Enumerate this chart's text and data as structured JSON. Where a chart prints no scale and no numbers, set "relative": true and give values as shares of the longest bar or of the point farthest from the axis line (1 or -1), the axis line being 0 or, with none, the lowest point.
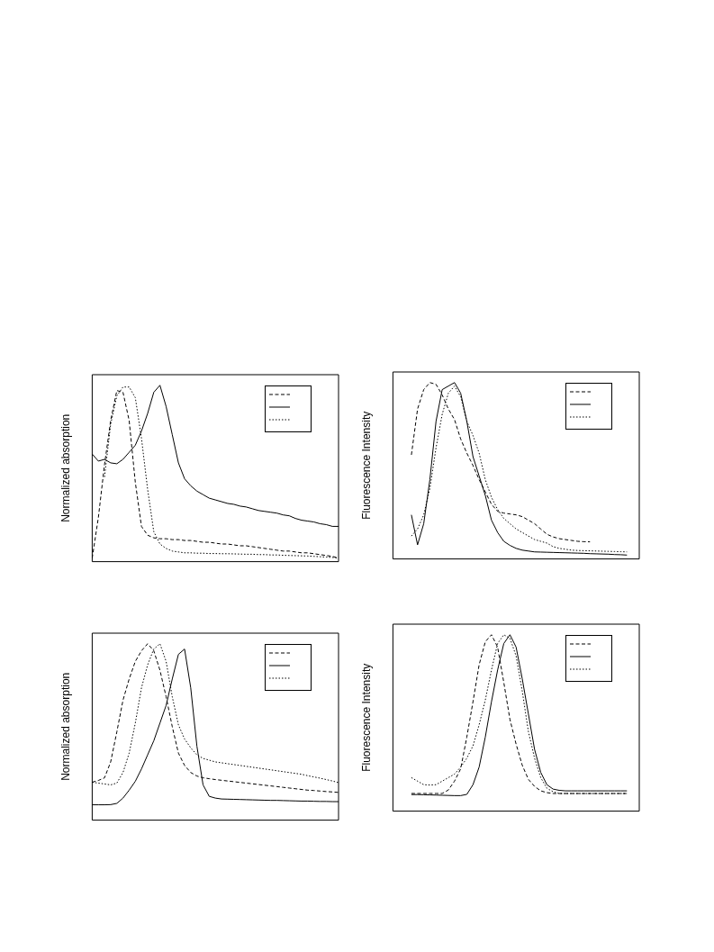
{
  "chart_data": [
    {
      "type": "line",
      "ylabel": "Normalized absorption",
      "relative": true,
      "categories": [
        null,
        null,
        null,
        null,
        null,
        null,
        null,
        null,
        null,
        null,
        null,
        null,
        null,
        null,
        null,
        null,
        null,
        null,
        null,
        null,
        null,
        null,
        null,
        null,
        null,
        null,
        null,
        null,
        null,
        null,
        null,
        null,
        null,
        null,
        null,
        null,
        null,
        null,
        null,
        null,
        null
      ],
      "series": [
        {
          "color": "#000000",
          "line_style": "dashed",
          "values": [
            0.02,
            0.25,
            0.55,
            0.8,
            0.97,
            0.96,
            0.8,
            0.45,
            0.2,
            0.15,
            0.135,
            0.13,
            0.13,
            0.125,
            0.125,
            0.12,
            0.12,
            0.115,
            0.11,
            0.11,
            0.105,
            0.1,
            0.1,
            0.095,
            0.09,
            0.09,
            0.085,
            0.08,
            0.075,
            0.07,
            0.065,
            0.06,
            0.06,
            0.055,
            0.05,
            0.05,
            0.045,
            0.04,
            0.035,
            0.03,
            0.02
          ]
        },
        {
          "color": "#000000",
          "line_style": "solid",
          "values": [
            0.61,
            0.57,
            0.58,
            0.56,
            0.555,
            0.58,
            0.62,
            0.66,
            0.74,
            0.84,
            0.96,
            1.0,
            0.88,
            0.72,
            0.56,
            0.47,
            0.43,
            0.4,
            0.38,
            0.36,
            0.35,
            0.34,
            0.33,
            0.325,
            0.315,
            0.31,
            0.3,
            0.29,
            0.285,
            0.28,
            0.275,
            0.265,
            0.26,
            0.245,
            0.235,
            0.23,
            0.225,
            0.215,
            0.21,
            0.2,
            0.2
          ]
        },
        {
          "color": "#000000",
          "line_style": "dotted",
          "values": [
            null,
            null,
            0.48,
            0.78,
            0.94,
            0.99,
            0.99,
            0.93,
            0.7,
            0.41,
            0.17,
            0.1,
            0.075,
            0.06,
            0.055,
            0.05,
            0.05,
            0.048,
            0.048,
            0.046,
            0.046,
            0.045,
            0.045,
            0.044,
            0.043,
            0.042,
            0.042,
            0.04,
            0.04,
            0.038,
            0.038,
            0.036,
            0.035,
            0.034,
            0.033,
            0.032,
            0.03,
            0.028,
            0.026,
            0.024,
            0.02
          ]
        }
      ]
    },
    {
      "type": "line",
      "ylabel": "Fluorescence Intensity",
      "relative": true,
      "categories": [
        null,
        null,
        null,
        null,
        null,
        null,
        null,
        null,
        null,
        null,
        null,
        null,
        null,
        null,
        null,
        null,
        null,
        null,
        null,
        null,
        null,
        null,
        null,
        null,
        null,
        null,
        null,
        null,
        null,
        null,
        null,
        null,
        null,
        null,
        null,
        null,
        null,
        null,
        null,
        null,
        null
      ],
      "series": [
        {
          "color": "#000000",
          "line_style": "dashed",
          "values": [
            null,
            null,
            null,
            0.59,
            0.85,
            0.96,
            1.0,
            0.99,
            0.93,
            0.85,
            0.79,
            0.68,
            0.6,
            0.53,
            0.45,
            0.38,
            0.31,
            0.27,
            0.26,
            0.255,
            0.25,
            0.24,
            0.22,
            0.2,
            0.17,
            0.14,
            0.125,
            0.115,
            0.11,
            0.105,
            0.1,
            0.098,
            0.097,
            null,
            null,
            null,
            null,
            null,
            null,
            null,
            null
          ]
        },
        {
          "color": "#000000",
          "line_style": "solid",
          "values": [
            null,
            null,
            null,
            0.25,
            0.08,
            0.2,
            0.45,
            0.78,
            0.96,
            0.98,
            1.0,
            0.94,
            0.78,
            0.58,
            0.47,
            0.36,
            0.22,
            0.15,
            0.1,
            0.077,
            0.06,
            0.05,
            0.045,
            0.04,
            0.039,
            0.038,
            0.037,
            0.036,
            0.035,
            0.034,
            0.033,
            0.032,
            0.03,
            0.029,
            0.028,
            0.027,
            0.025,
            0.024,
            0.022,
            null,
            null
          ]
        },
        {
          "color": "#000000",
          "line_style": "dotted",
          "values": [
            null,
            null,
            null,
            0.13,
            0.17,
            0.25,
            0.4,
            0.63,
            0.82,
            0.94,
            0.98,
            0.92,
            0.78,
            0.7,
            0.6,
            0.45,
            0.35,
            0.28,
            0.23,
            0.2,
            0.17,
            0.15,
            0.13,
            0.11,
            0.1,
            0.09,
            0.07,
            0.06,
            0.055,
            0.05,
            0.048,
            0.047,
            0.046,
            0.045,
            0.044,
            0.043,
            0.042,
            0.041,
            0.04,
            null,
            null
          ]
        }
      ]
    },
    {
      "type": "line",
      "ylabel": "Normalized absorption",
      "relative": true,
      "categories": [
        null,
        null,
        null,
        null,
        null,
        null,
        null,
        null,
        null,
        null,
        null,
        null,
        null,
        null,
        null,
        null,
        null,
        null,
        null,
        null,
        null,
        null,
        null,
        null,
        null,
        null,
        null,
        null,
        null,
        null,
        null,
        null,
        null,
        null,
        null,
        null,
        null,
        null,
        null,
        null,
        null
      ],
      "series": [
        {
          "color": "#000000",
          "line_style": "dashed",
          "values": [
            0.215,
            0.225,
            0.24,
            0.33,
            0.5,
            0.68,
            0.8,
            0.9,
            0.96,
            1.0,
            0.96,
            0.85,
            0.7,
            0.53,
            0.38,
            0.31,
            0.27,
            0.25,
            0.24,
            0.235,
            0.23,
            0.226,
            0.222,
            0.218,
            0.214,
            0.21,
            0.206,
            0.202,
            0.198,
            0.194,
            0.19,
            0.186,
            0.182,
            0.178,
            0.174,
            0.17,
            0.168,
            0.165,
            0.162,
            0.16,
            0.157
          ]
        },
        {
          "color": "#000000",
          "line_style": "solid",
          "values": [
            0.087,
            0.087,
            0.087,
            0.088,
            0.095,
            0.125,
            0.17,
            0.22,
            0.29,
            0.37,
            0.45,
            0.55,
            0.65,
            0.8,
            0.94,
            0.97,
            0.75,
            0.42,
            0.2,
            0.135,
            0.125,
            0.12,
            0.119,
            0.118,
            0.117,
            0.116,
            0.115,
            0.114,
            0.113,
            0.112,
            0.112,
            0.111,
            0.11,
            0.109,
            0.108,
            0.108,
            0.107,
            0.106,
            0.106,
            0.105,
            0.105
          ]
        },
        {
          "color": "#000000",
          "line_style": "dotted",
          "values": [
            0.215,
            0.21,
            0.205,
            0.2,
            0.21,
            0.27,
            0.38,
            0.55,
            0.75,
            0.88,
            0.97,
            1.0,
            0.9,
            0.7,
            0.54,
            0.46,
            0.41,
            0.37,
            0.35,
            0.34,
            0.33,
            0.325,
            0.32,
            0.315,
            0.31,
            0.305,
            0.3,
            0.295,
            0.29,
            0.285,
            0.28,
            0.275,
            0.27,
            0.265,
            0.26,
            0.252,
            0.245,
            0.238,
            0.23,
            0.222,
            0.213
          ]
        }
      ]
    },
    {
      "type": "line",
      "ylabel": "Fluorescence Intensity",
      "relative": true,
      "categories": [
        null,
        null,
        null,
        null,
        null,
        null,
        null,
        null,
        null,
        null,
        null,
        null,
        null,
        null,
        null,
        null,
        null,
        null,
        null,
        null,
        null,
        null,
        null,
        null,
        null,
        null,
        null,
        null,
        null,
        null,
        null,
        null,
        null,
        null,
        null,
        null,
        null,
        null,
        null,
        null,
        null
      ],
      "series": [
        {
          "color": "#000000",
          "line_style": "dashed",
          "values": [
            null,
            null,
            null,
            0.1,
            0.1,
            0.1,
            0.1,
            0.1,
            0.1,
            0.12,
            0.17,
            0.24,
            0.42,
            0.62,
            0.83,
            0.96,
            1.0,
            0.93,
            0.73,
            0.52,
            0.38,
            0.26,
            0.18,
            0.14,
            0.115,
            0.105,
            0.1,
            0.1,
            0.1,
            0.1,
            0.1,
            0.1,
            0.1,
            0.1,
            0.1,
            0.1,
            0.1,
            0.1,
            0.1,
            null,
            null
          ]
        },
        {
          "color": "#000000",
          "line_style": "solid",
          "values": [
            null,
            null,
            null,
            0.094,
            0.094,
            0.093,
            0.092,
            0.091,
            0.09,
            0.089,
            0.088,
            0.088,
            0.095,
            0.15,
            0.25,
            0.42,
            0.62,
            0.8,
            0.95,
            1.0,
            0.93,
            0.75,
            0.55,
            0.35,
            0.22,
            0.15,
            0.125,
            0.118,
            0.115,
            0.115,
            0.115,
            0.115,
            0.115,
            0.115,
            0.115,
            0.115,
            0.115,
            0.115,
            0.115,
            null,
            null
          ]
        },
        {
          "color": "#000000",
          "line_style": "dotted",
          "values": [
            null,
            null,
            null,
            0.19,
            0.17,
            0.15,
            0.148,
            0.15,
            0.17,
            0.19,
            0.21,
            0.25,
            0.3,
            0.37,
            0.49,
            0.63,
            0.8,
            0.95,
            1.0,
            0.98,
            0.88,
            0.68,
            0.45,
            0.3,
            0.19,
            0.13,
            0.11,
            0.1,
            0.1,
            0.1,
            0.1,
            0.1,
            0.1,
            0.1,
            0.1,
            0.1,
            0.1,
            0.1,
            0.1,
            null,
            null
          ]
        }
      ]
    }
  ]
}
